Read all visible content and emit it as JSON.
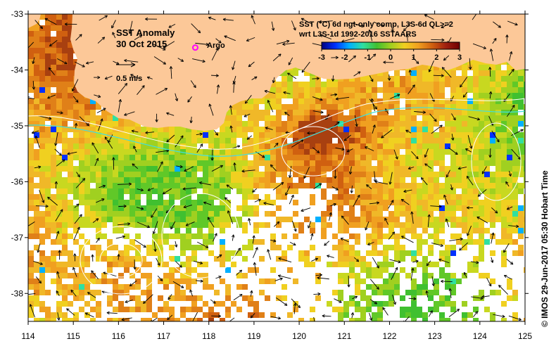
{
  "chart_data": {
    "type": "heatmap",
    "title": "SST Anomaly",
    "date": "30 Oct 2015",
    "legend_title_line1": "SST (°C) 6d ngt-only comp, L3S-6d QL>=2",
    "legend_title_line2": "wrt L3S-1d 1992-2016 SSTAARS",
    "colorbar_ticks": [
      "-3",
      "-2",
      "-1",
      "0",
      "1",
      "2",
      "3"
    ],
    "colorbar_range": [
      -3,
      3
    ],
    "colorbar_colors": [
      "#00007f",
      "#0030ff",
      "#00b0ff",
      "#30e0a0",
      "#40c030",
      "#a0d020",
      "#f0d020",
      "#f0a020",
      "#d06010",
      "#a02010",
      "#700000"
    ],
    "argo_label": "Argo",
    "argo_color": "#ff00ff",
    "argo_position": {
      "lon": 117.7,
      "lat": -33.6
    },
    "scale_label": "0.5 m/s",
    "xlim": [
      114,
      125
    ],
    "ylim": [
      -38.5,
      -33
    ],
    "x_ticks": [
      "114",
      "115",
      "116",
      "117",
      "118",
      "119",
      "120",
      "121",
      "122",
      "123",
      "124",
      "125"
    ],
    "y_ticks": [
      "-33",
      "-34",
      "-35",
      "-36",
      "-37",
      "-38"
    ],
    "land_color": "#fcc898",
    "credit": "© IMOS 29-Jun-2017 05:30 Hobart Time"
  }
}
